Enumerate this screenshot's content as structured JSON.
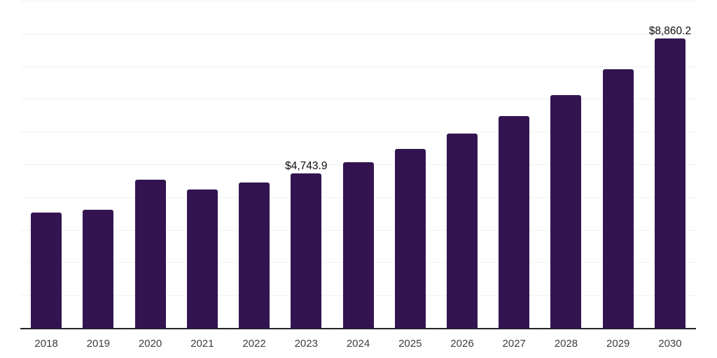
{
  "chart_data": {
    "type": "bar",
    "title": "",
    "xlabel": "",
    "ylabel": "",
    "legend": "none",
    "grid": "horizontal",
    "ylim": [
      0,
      10000
    ],
    "gridline_step": 1000,
    "categories": [
      "2018",
      "2019",
      "2020",
      "2021",
      "2022",
      "2023",
      "2024",
      "2025",
      "2026",
      "2027",
      "2028",
      "2029",
      "2030"
    ],
    "values": [
      3540,
      3630,
      4545,
      4245,
      4460,
      4743.9,
      5085,
      5485,
      5960,
      6495,
      7140,
      7930,
      8860.2
    ],
    "point_labels": [
      "",
      "",
      "",
      "",
      "",
      "$4,743.9",
      "",
      "",
      "",
      "",
      "",
      "",
      "$8,860.2"
    ],
    "colors": {
      "bar": "#331450",
      "gridline": "#F2F2F2",
      "axis_line": "#262626",
      "tick_label": "#3D3D3D",
      "point_label": "#0D0D0D",
      "background": "#FFFFFF"
    }
  }
}
